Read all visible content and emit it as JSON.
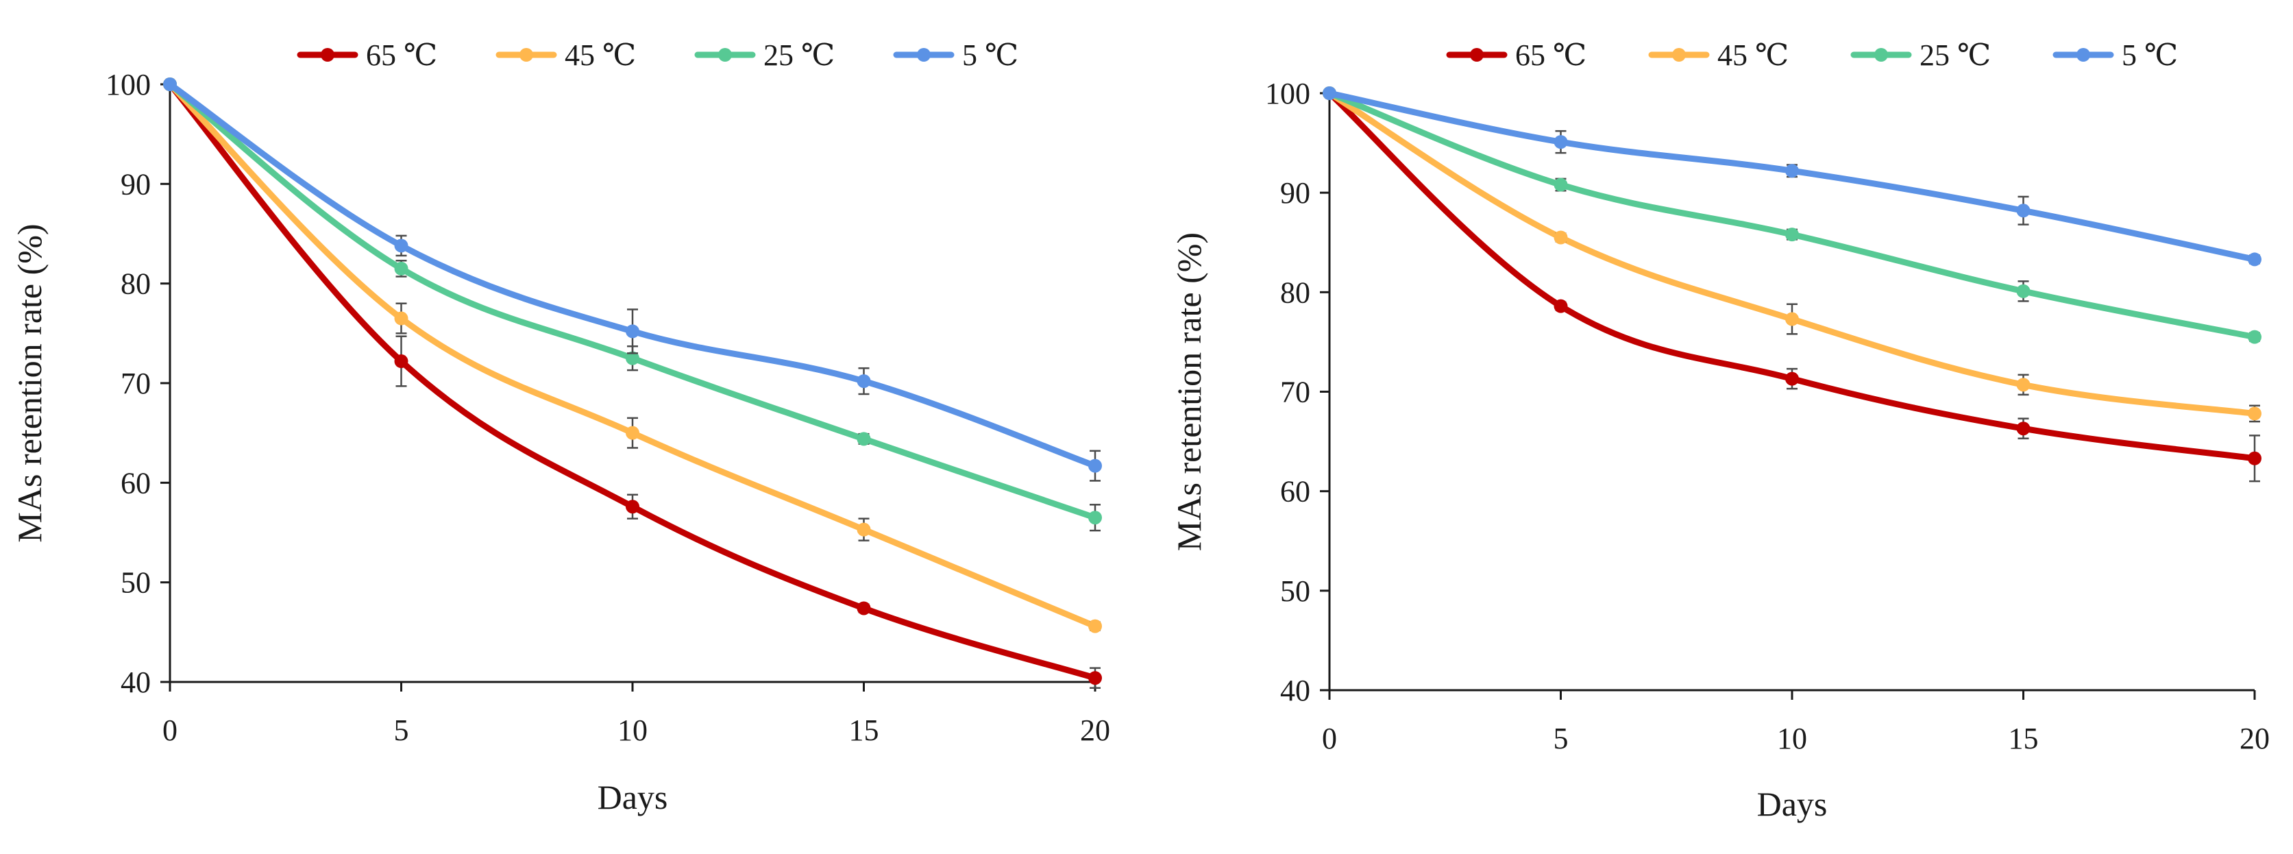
{
  "chart_data": [
    {
      "type": "line",
      "xlabel": "Days",
      "ylabel": "MAs retention rate (%)",
      "ylim": [
        40,
        100
      ],
      "xlim": [
        0,
        20
      ],
      "yticks": [
        40,
        50,
        60,
        70,
        80,
        90,
        100
      ],
      "xticks": [
        0,
        5,
        10,
        15,
        20
      ],
      "legend_position": "top",
      "grid": false,
      "x": [
        0,
        5,
        10,
        15,
        20
      ],
      "series": [
        {
          "name": "65 ℃",
          "color": "#c00000",
          "values": [
            100,
            72.2,
            57.6,
            47.4,
            40.4
          ],
          "errors": [
            0,
            2.5,
            1.2,
            0.4,
            1.0
          ]
        },
        {
          "name": "45 ℃",
          "color": "#ffb74d",
          "values": [
            100,
            76.5,
            65.0,
            55.3,
            45.6
          ],
          "errors": [
            0,
            1.5,
            1.5,
            1.1,
            0.4
          ]
        },
        {
          "name": "25 ℃",
          "color": "#57c994",
          "values": [
            100,
            81.5,
            72.5,
            64.4,
            56.5
          ],
          "errors": [
            0,
            0.8,
            1.2,
            0.5,
            1.3
          ]
        },
        {
          "name": "5 ℃",
          "color": "#5b92e5",
          "values": [
            100,
            83.8,
            75.2,
            70.2,
            61.7
          ],
          "errors": [
            0,
            1.0,
            2.2,
            1.3,
            1.5
          ]
        }
      ]
    },
    {
      "type": "line",
      "xlabel": "Days",
      "ylabel": "MAs retention rate (%)",
      "ylim": [
        40,
        100
      ],
      "xlim": [
        0,
        20
      ],
      "yticks": [
        40,
        50,
        60,
        70,
        80,
        90,
        100
      ],
      "xticks": [
        0,
        5,
        10,
        15,
        20
      ],
      "legend_position": "top",
      "grid": false,
      "x": [
        0,
        5,
        10,
        15,
        20
      ],
      "series": [
        {
          "name": "65 ℃",
          "color": "#c00000",
          "values": [
            100,
            78.6,
            71.3,
            66.3,
            63.3
          ],
          "errors": [
            0,
            0.4,
            1.0,
            1.0,
            2.3
          ]
        },
        {
          "name": "45 ℃",
          "color": "#ffb74d",
          "values": [
            100,
            85.5,
            77.3,
            70.7,
            67.8
          ],
          "errors": [
            0,
            0.4,
            1.5,
            1.0,
            0.8
          ]
        },
        {
          "name": "25 ℃",
          "color": "#57c994",
          "values": [
            100,
            90.8,
            85.8,
            80.1,
            75.5
          ],
          "errors": [
            0,
            0.6,
            0.5,
            1.0,
            0.4
          ]
        },
        {
          "name": "5 ℃",
          "color": "#5b92e5",
          "values": [
            100,
            95.1,
            92.2,
            88.2,
            83.3
          ],
          "errors": [
            0,
            1.1,
            0.6,
            1.4,
            0.4
          ]
        }
      ]
    }
  ]
}
